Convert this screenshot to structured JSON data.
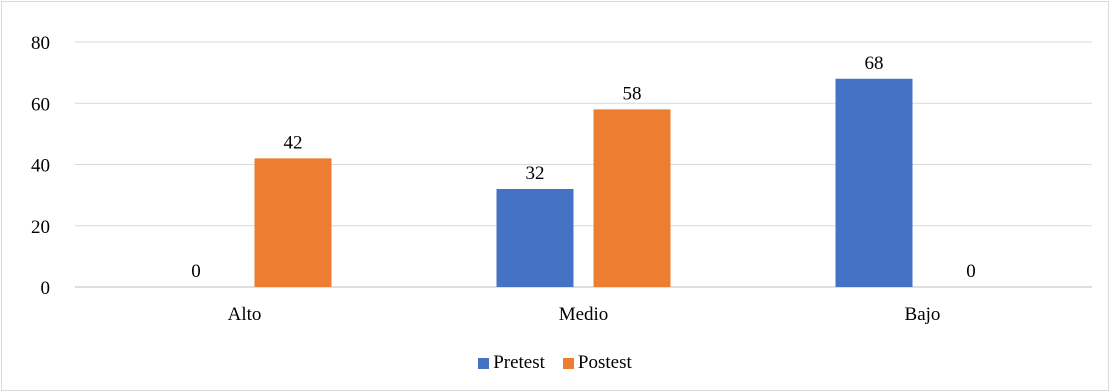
{
  "chart_data": {
    "type": "bar",
    "title": "",
    "xlabel": "",
    "ylabel": "",
    "categories": [
      "Alto",
      "Medio",
      "Bajo"
    ],
    "ylim": [
      0,
      80
    ],
    "yticks": [
      "0",
      "20",
      "40",
      "60",
      "80"
    ],
    "grid": true,
    "legend_position": "bottom",
    "series": [
      {
        "name": "Pretest",
        "values": [
          0,
          32,
          68
        ],
        "color": "#4472c4"
      },
      {
        "name": "Postest",
        "values": [
          42,
          58,
          0
        ],
        "color": "#ed7d31"
      }
    ]
  }
}
